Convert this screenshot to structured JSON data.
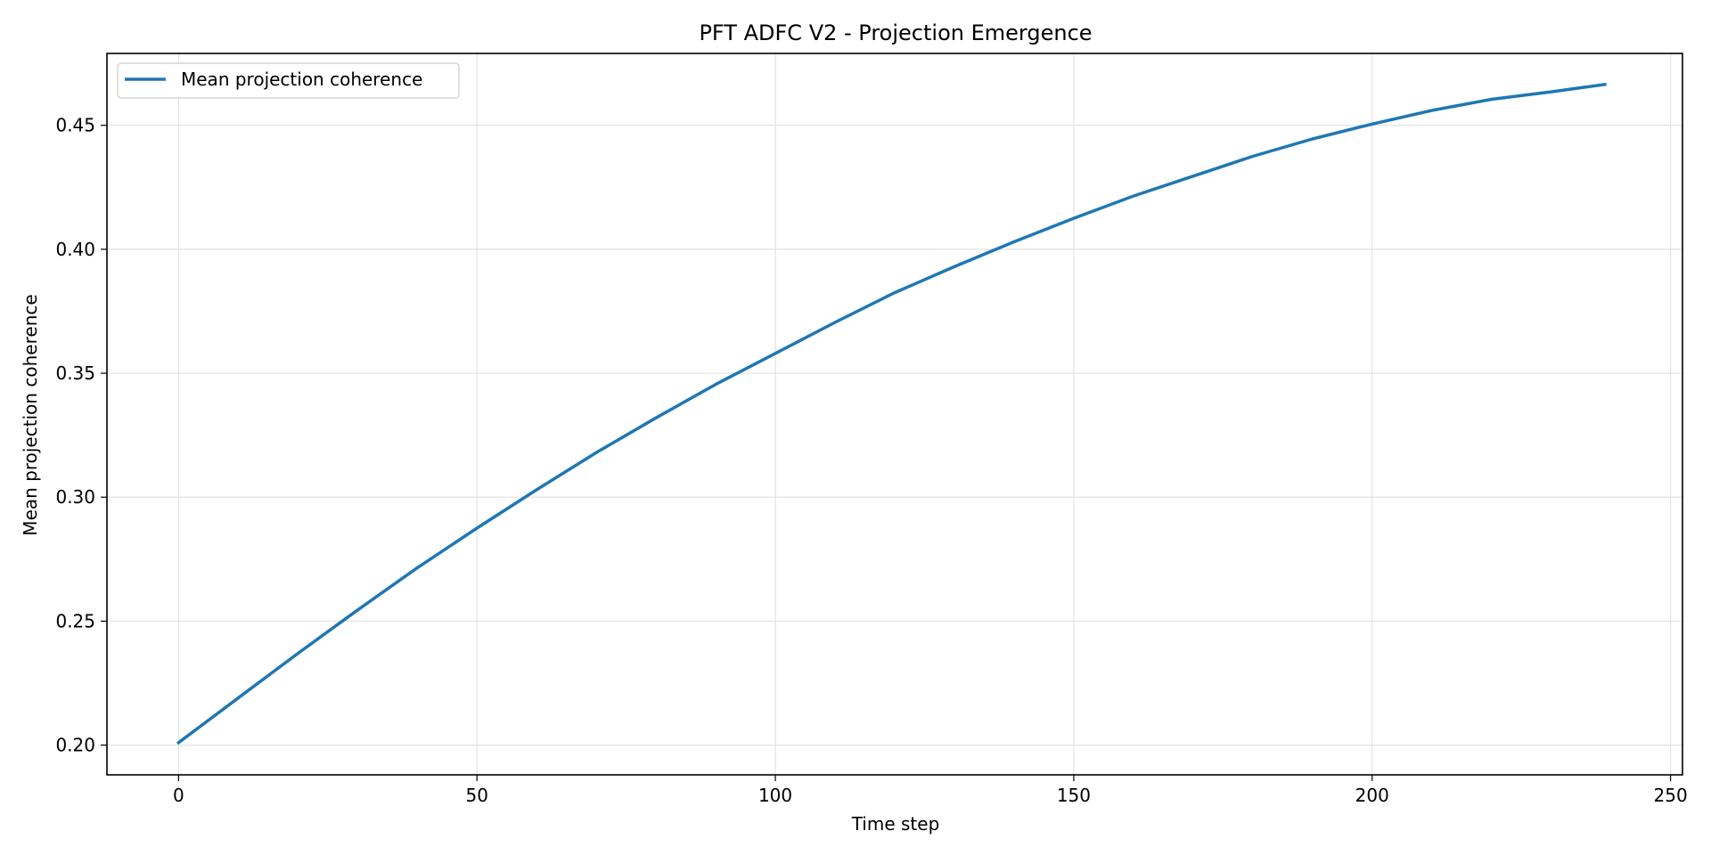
{
  "chart_data": {
    "type": "line",
    "title": "PFT ADFC V2 - Projection Emergence",
    "xlabel": "Time step",
    "ylabel": "Mean projection coherence",
    "xlim": [
      -12,
      252
    ],
    "ylim": [
      0.188,
      0.479
    ],
    "xticks": [
      0,
      50,
      100,
      150,
      200,
      250
    ],
    "xtick_labels": [
      "0",
      "50",
      "100",
      "150",
      "200",
      "250"
    ],
    "yticks": [
      0.2,
      0.25,
      0.3,
      0.35,
      0.4,
      0.45
    ],
    "ytick_labels": [
      "0.20",
      "0.25",
      "0.30",
      "0.35",
      "0.40",
      "0.45"
    ],
    "grid": true,
    "legend": "upper left",
    "series": [
      {
        "name": "Mean projection coherence",
        "color": "#1f77b4",
        "x": [
          0,
          10,
          20,
          30,
          40,
          50,
          60,
          70,
          80,
          90,
          100,
          110,
          120,
          130,
          140,
          150,
          160,
          170,
          180,
          190,
          200,
          210,
          220,
          230,
          239
        ],
        "y": [
          0.201,
          0.219,
          0.237,
          0.2545,
          0.2715,
          0.2875,
          0.303,
          0.318,
          0.332,
          0.3455,
          0.358,
          0.3705,
          0.3825,
          0.393,
          0.403,
          0.4125,
          0.4215,
          0.4295,
          0.4375,
          0.4445,
          0.4505,
          0.456,
          0.4605,
          0.4635,
          0.4665
        ]
      }
    ]
  }
}
